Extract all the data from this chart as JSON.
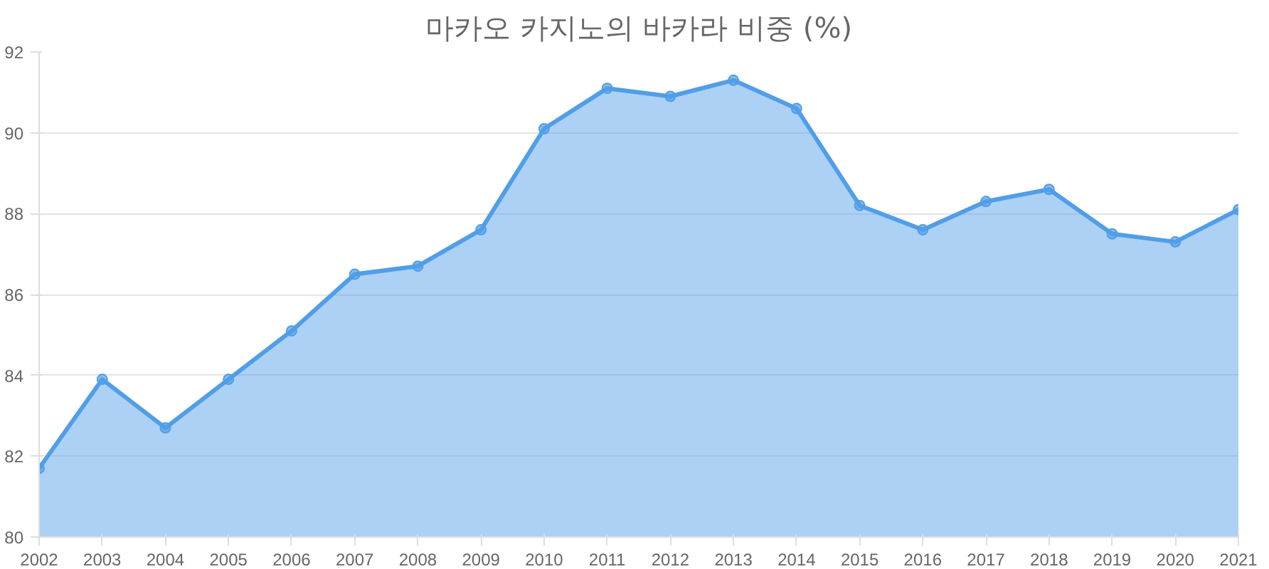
{
  "chart_data": {
    "type": "area",
    "title": "마카오 카지노의 바카라 비중 (%)",
    "categories": [
      "2002",
      "2003",
      "2004",
      "2005",
      "2006",
      "2007",
      "2008",
      "2009",
      "2010",
      "2011",
      "2012",
      "2013",
      "2014",
      "2015",
      "2016",
      "2017",
      "2018",
      "2019",
      "2020",
      "2021"
    ],
    "series": [
      {
        "color": "#519ee8",
        "values": [
          81.7,
          83.9,
          82.7,
          83.9,
          85.1,
          86.5,
          86.7,
          87.6,
          90.1,
          91.1,
          90.9,
          91.3,
          90.6,
          88.2,
          87.6,
          88.3,
          88.6,
          87.5,
          87.3,
          88.1
        ]
      }
    ],
    "ylim": [
      80,
      92
    ],
    "yticks": [
      80,
      82,
      84,
      86,
      88,
      90,
      92
    ],
    "grid": "y",
    "marker": "circle",
    "line_style": "solid"
  }
}
